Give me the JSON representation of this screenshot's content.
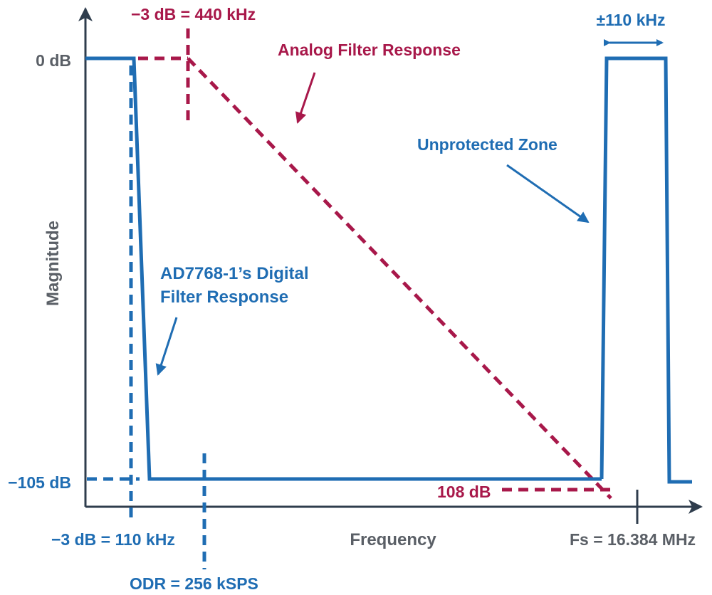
{
  "colors": {
    "blue": "#1f6db3",
    "red": "#a8184a",
    "axis": "#2f3d4d",
    "axis_label": "#5a5f66"
  },
  "axes": {
    "y_label": "Magnitude",
    "x_label": "Frequency",
    "y_tick_top": "0 dB",
    "y_tick_bottom": "−105 dB"
  },
  "annotations": {
    "analog_cutoff": "−3 dB = 440 kHz",
    "analog_title": "Analog Filter Response",
    "digital_title_line1": "AD7768-1’s Digital",
    "digital_title_line2": "Filter Response",
    "digital_cutoff": "−3 dB = 110 kHz",
    "odr": "ODR = 256 kSPS",
    "unprotected": "Unprotected Zone",
    "bandwidth": "±110 kHz",
    "attenuation": "108 dB",
    "fs": "Fs = 16.384 MHz"
  }
}
